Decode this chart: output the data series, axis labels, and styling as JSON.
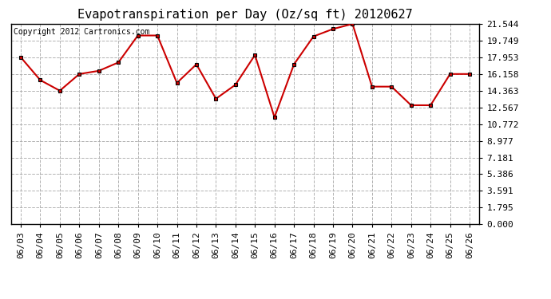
{
  "title": "Evapotranspiration per Day (Oz/sq ft) 20120627",
  "copyright_text": "Copyright 2012 Cartronics.com",
  "dates": [
    "06/03",
    "06/04",
    "06/05",
    "06/06",
    "06/07",
    "06/08",
    "06/09",
    "06/10",
    "06/11",
    "06/12",
    "06/13",
    "06/14",
    "06/15",
    "06/16",
    "06/17",
    "06/18",
    "06/19",
    "06/20",
    "06/21",
    "06/22",
    "06/23",
    "06/24",
    "06/25",
    "06/26"
  ],
  "values": [
    17.953,
    15.5,
    14.363,
    16.158,
    16.5,
    17.4,
    20.3,
    20.3,
    15.2,
    17.2,
    13.5,
    15.0,
    18.2,
    11.5,
    17.2,
    20.2,
    21.0,
    21.544,
    14.8,
    14.8,
    12.8,
    12.8,
    16.158,
    16.158
  ],
  "y_ticks": [
    0.0,
    1.795,
    3.591,
    5.386,
    7.181,
    8.977,
    10.772,
    12.567,
    14.363,
    16.158,
    17.953,
    19.749,
    21.544
  ],
  "ylim": [
    0.0,
    21.544
  ],
  "line_color": "#cc0000",
  "bg_color": "#ffffff",
  "grid_color": "#aaaaaa",
  "title_fontsize": 11,
  "copyright_fontsize": 7,
  "tick_fontsize": 8
}
